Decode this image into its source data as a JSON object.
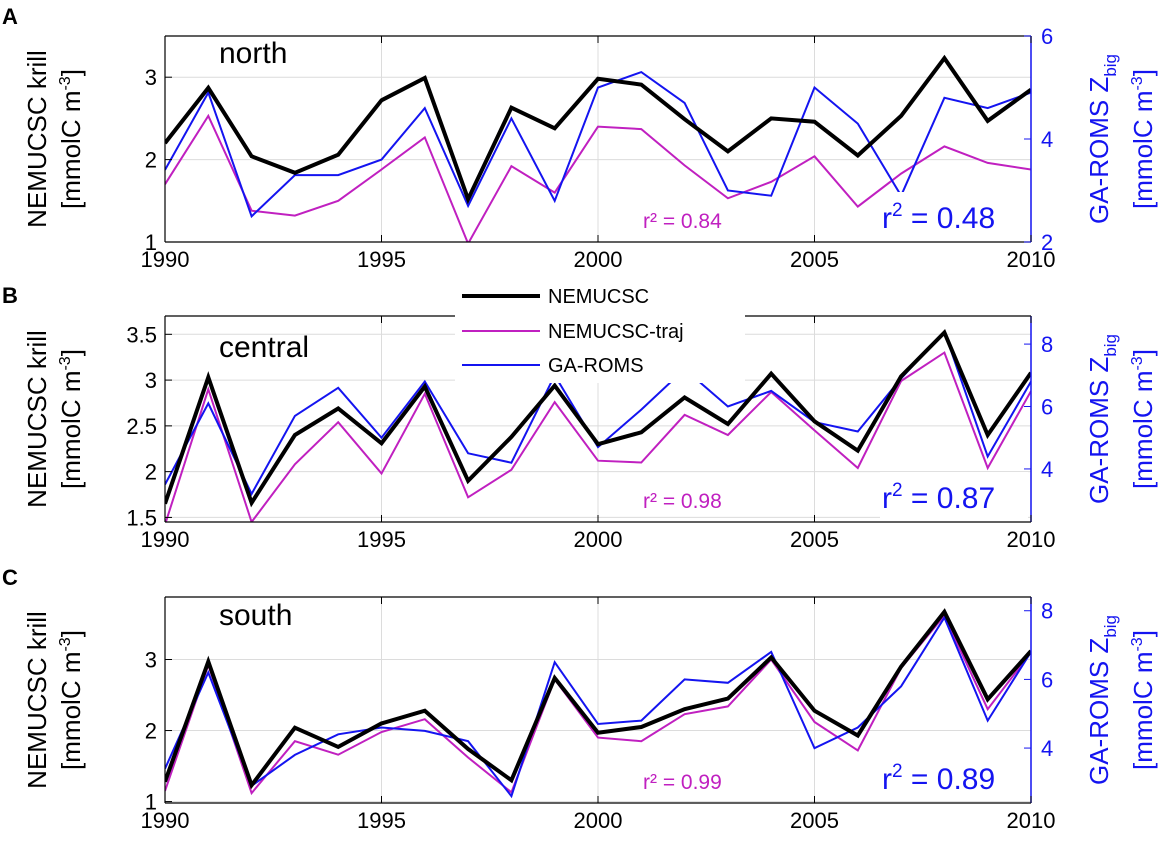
{
  "colors": {
    "NEMUCSC": "#000000",
    "NEMUCSC-traj": "#c020c0",
    "GA-ROMS": "#1414f0",
    "grid": "#dcdcdc",
    "axis": "#000000"
  },
  "legend": [
    {
      "key": "NEMUCSC",
      "label": "NEMUCSC"
    },
    {
      "key": "NEMUCSC-traj",
      "label": "NEMUCSC-traj"
    },
    {
      "key": "GA-ROMS",
      "label": "GA-ROMS"
    }
  ],
  "chart_data": [
    {
      "type": "line",
      "panel_letter": "A",
      "title": "north",
      "ylabel_left": [
        "NEMUCSC krill",
        "[mmolC m"
      ],
      "ylabel_right": [
        "GA-ROMS Z",
        "big",
        "[mmolC m"
      ],
      "unit_exp": "-3",
      "x": [
        1990,
        1991,
        1992,
        1993,
        1994,
        1995,
        1996,
        1997,
        1998,
        1999,
        2000,
        2001,
        2002,
        2003,
        2004,
        2005,
        2006,
        2007,
        2008,
        2009,
        2010
      ],
      "xlim": [
        1990,
        2010
      ],
      "xticks": [
        "1990",
        "1995",
        "2000",
        "2005",
        "2010"
      ],
      "ylim_left": [
        1,
        3.5
      ],
      "yticks_left": [
        "1",
        "2",
        "3"
      ],
      "ylim_right": [
        2,
        6
      ],
      "yticks_right": [
        "2",
        "4",
        "6"
      ],
      "series": [
        {
          "key": "NEMUCSC-traj",
          "axis": "left",
          "values": [
            1.7,
            2.53,
            1.38,
            1.32,
            1.5,
            1.88,
            2.27,
            0.98,
            1.92,
            1.6,
            2.4,
            2.37,
            1.93,
            1.53,
            1.73,
            2.04,
            1.43,
            1.83,
            2.16,
            1.96,
            1.88
          ]
        },
        {
          "key": "GA-ROMS",
          "axis": "right",
          "values": [
            3.4,
            4.9,
            2.5,
            3.3,
            3.3,
            3.6,
            4.6,
            2.7,
            4.4,
            2.8,
            5.0,
            5.3,
            4.7,
            3.0,
            2.9,
            5.0,
            4.3,
            2.9,
            4.8,
            4.6,
            4.9
          ]
        },
        {
          "key": "NEMUCSC",
          "axis": "left",
          "values": [
            2.2,
            2.87,
            2.04,
            1.84,
            2.06,
            2.72,
            2.99,
            1.52,
            2.63,
            2.38,
            2.98,
            2.91,
            2.49,
            2.1,
            2.5,
            2.46,
            2.05,
            2.53,
            3.23,
            2.47,
            2.85
          ]
        }
      ],
      "r2_traj": "r² = 0.84",
      "r2_roms": "0.48"
    },
    {
      "type": "line",
      "panel_letter": "B",
      "title": "central",
      "ylabel_left": [
        "NEMUCSC krill",
        "[mmolC m"
      ],
      "ylabel_right": [
        "GA-ROMS Z",
        "big",
        "[mmolC m"
      ],
      "unit_exp": "-3",
      "x": [
        1990,
        1991,
        1992,
        1993,
        1994,
        1995,
        1996,
        1997,
        1998,
        1999,
        2000,
        2001,
        2002,
        2003,
        2004,
        2005,
        2006,
        2007,
        2008,
        2009,
        2010
      ],
      "xlim": [
        1990,
        2010
      ],
      "xticks": [
        "1990",
        "1995",
        "2000",
        "2005",
        "2010"
      ],
      "ylim_left": [
        1.45,
        3.7
      ],
      "yticks_left": [
        "1.5",
        "2",
        "2.5",
        "3",
        "3.5"
      ],
      "ylim_right": [
        2.3,
        8.9
      ],
      "yticks_right": [
        "4",
        "6",
        "8"
      ],
      "series": [
        {
          "key": "NEMUCSC-traj",
          "axis": "left",
          "values": [
            1.42,
            2.9,
            1.45,
            2.08,
            2.54,
            1.98,
            2.85,
            1.72,
            2.02,
            2.76,
            2.12,
            2.1,
            2.62,
            2.4,
            2.87,
            2.45,
            2.04,
            2.99,
            3.3,
            2.04,
            2.88
          ]
        },
        {
          "key": "GA-ROMS",
          "axis": "right",
          "values": [
            3.5,
            6.1,
            3.2,
            5.7,
            6.6,
            5.0,
            6.8,
            4.5,
            4.2,
            7.0,
            4.7,
            5.9,
            7.2,
            6.0,
            6.5,
            5.5,
            5.2,
            6.9,
            8.4,
            4.4,
            6.8
          ]
        },
        {
          "key": "NEMUCSC",
          "axis": "left",
          "values": [
            1.65,
            3.03,
            1.66,
            2.4,
            2.69,
            2.31,
            2.93,
            1.9,
            2.38,
            2.94,
            2.3,
            2.43,
            2.81,
            2.52,
            3.07,
            2.55,
            2.23,
            3.04,
            3.52,
            2.4,
            3.08
          ]
        }
      ],
      "r2_traj": "r² = 0.98",
      "r2_roms": "0.87"
    },
    {
      "type": "line",
      "panel_letter": "C",
      "title": "south",
      "ylabel_left": [
        "NEMUCSC krill",
        "[mmolC m"
      ],
      "ylabel_right": [
        "GA-ROMS Z",
        "big",
        "[mmolC m"
      ],
      "unit_exp": "-3",
      "x": [
        1990,
        1991,
        1992,
        1993,
        1994,
        1995,
        1996,
        1997,
        1998,
        1999,
        2000,
        2001,
        2002,
        2003,
        2004,
        2005,
        2006,
        2007,
        2008,
        2009,
        2010
      ],
      "xlim": [
        1990,
        2010
      ],
      "xticks": [
        "1990",
        "1995",
        "2000",
        "2005",
        "2010"
      ],
      "ylim_left": [
        0.98,
        3.88
      ],
      "yticks_left": [
        "1",
        "2",
        "3"
      ],
      "ylim_right": [
        2.4,
        8.4
      ],
      "yticks_right": [
        "4",
        "6",
        "8"
      ],
      "series": [
        {
          "key": "NEMUCSC-traj",
          "axis": "left",
          "values": [
            1.15,
            2.92,
            1.12,
            1.85,
            1.66,
            1.98,
            2.16,
            1.62,
            1.13,
            2.72,
            1.9,
            1.85,
            2.23,
            2.34,
            3.0,
            2.12,
            1.72,
            2.88,
            3.62,
            2.3,
            3.1
          ]
        },
        {
          "key": "GA-ROMS",
          "axis": "right",
          "values": [
            3.4,
            6.2,
            2.9,
            3.8,
            4.4,
            4.6,
            4.5,
            4.2,
            2.6,
            6.5,
            4.7,
            4.8,
            6.0,
            5.9,
            6.8,
            4.0,
            4.6,
            5.8,
            7.8,
            4.8,
            6.8
          ]
        },
        {
          "key": "NEMUCSC",
          "axis": "left",
          "values": [
            1.28,
            2.97,
            1.23,
            2.04,
            1.77,
            2.1,
            2.28,
            1.74,
            1.3,
            2.74,
            1.97,
            2.05,
            2.3,
            2.45,
            3.03,
            2.28,
            1.93,
            2.9,
            3.67,
            2.44,
            3.12
          ]
        }
      ],
      "r2_traj": "r² = 0.99",
      "r2_roms": "0.89"
    }
  ]
}
